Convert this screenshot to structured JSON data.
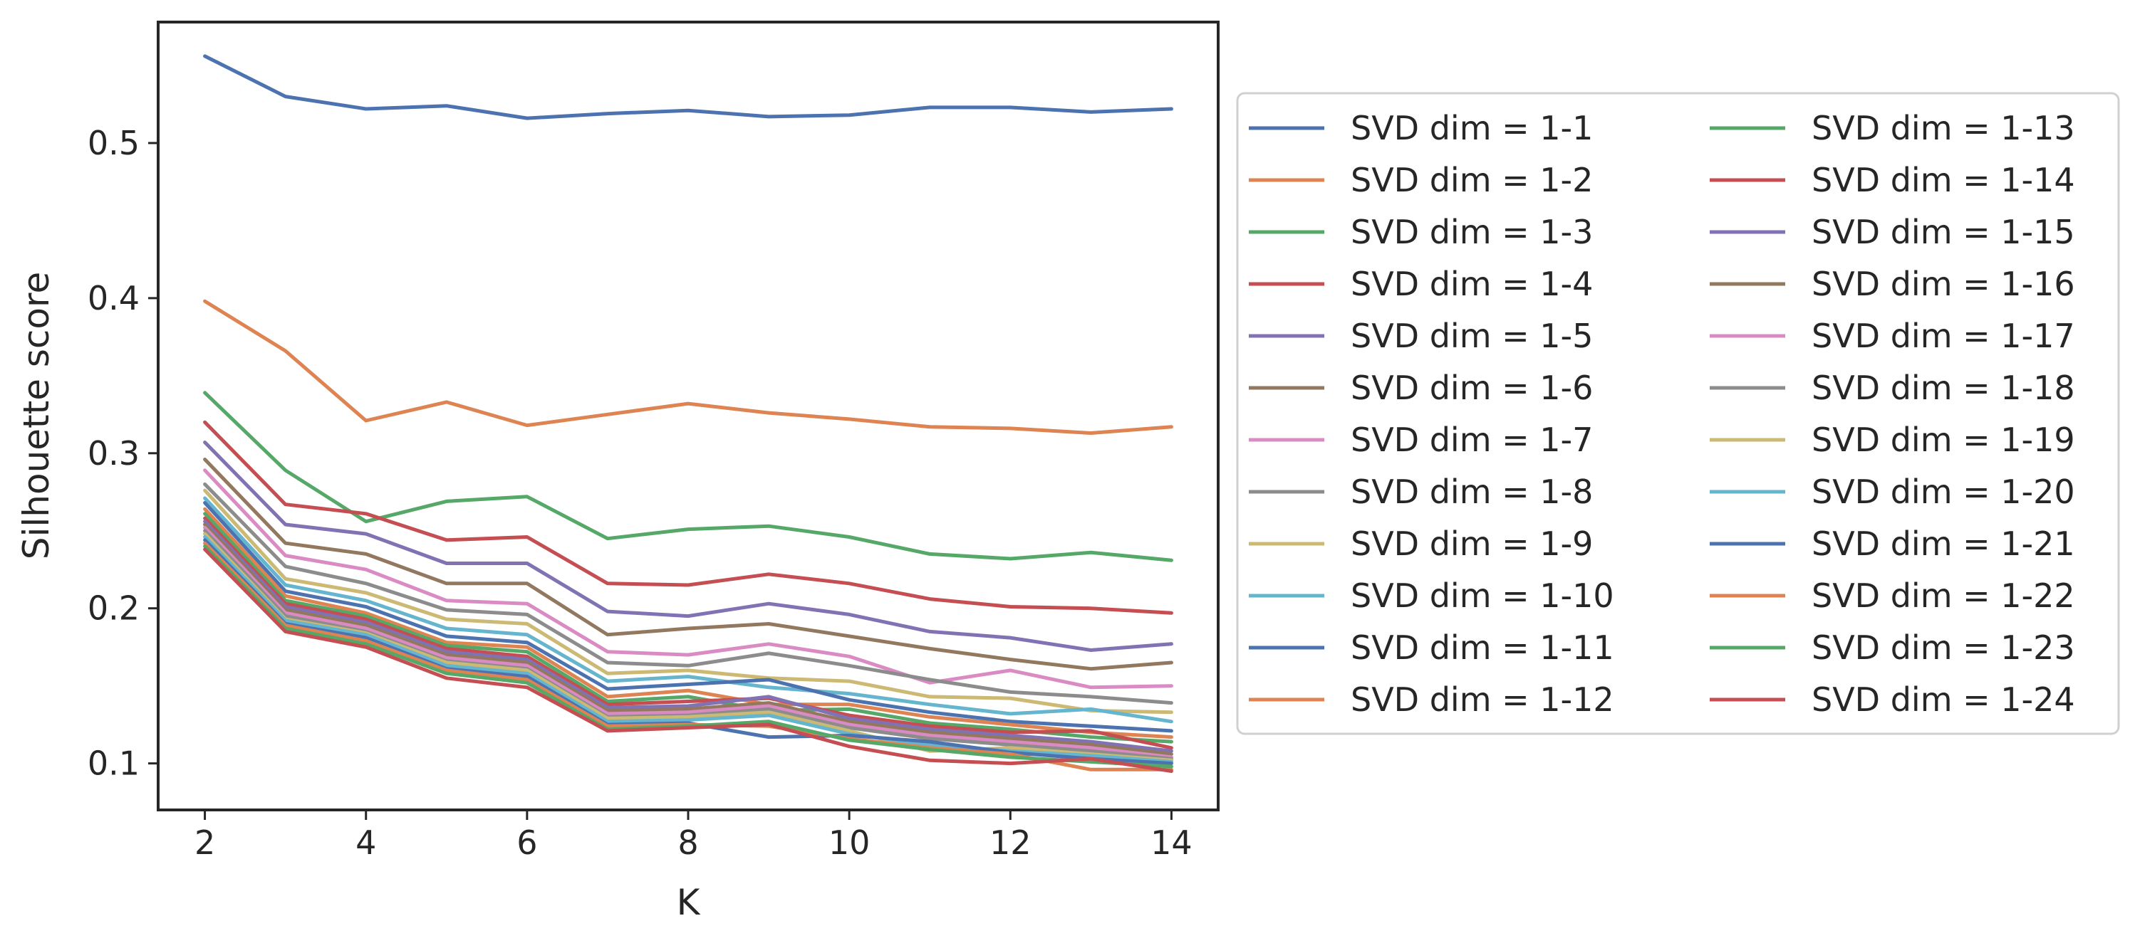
{
  "chart_data": {
    "type": "line",
    "xlabel": "K",
    "ylabel": "Silhouette score",
    "x": [
      2,
      3,
      4,
      5,
      6,
      7,
      8,
      9,
      10,
      11,
      12,
      13,
      14
    ],
    "xlim": [
      1.42,
      14.58
    ],
    "ylim": [
      0.07,
      0.578
    ],
    "xticks": [
      2,
      4,
      6,
      8,
      10,
      12,
      14
    ],
    "yticks": [
      0.1,
      0.2,
      0.3,
      0.4,
      0.5
    ],
    "grid": false,
    "legend": {
      "placement": "right, outside plot",
      "columns": 2
    },
    "series": [
      {
        "name": "SVD dim = 1-1",
        "color": "#4c72b0",
        "values": [
          0.556,
          0.53,
          0.522,
          0.524,
          0.516,
          0.519,
          0.521,
          0.517,
          0.518,
          0.523,
          0.523,
          0.52,
          0.522
        ]
      },
      {
        "name": "SVD dim = 1-2",
        "color": "#dd8452",
        "values": [
          0.398,
          0.366,
          0.321,
          0.333,
          0.318,
          0.325,
          0.332,
          0.326,
          0.322,
          0.317,
          0.316,
          0.313,
          0.317
        ]
      },
      {
        "name": "SVD dim = 1-3",
        "color": "#55a868",
        "values": [
          0.339,
          0.289,
          0.256,
          0.269,
          0.272,
          0.245,
          0.251,
          0.253,
          0.246,
          0.235,
          0.232,
          0.236,
          0.231
        ]
      },
      {
        "name": "SVD dim = 1-4",
        "color": "#c44e52",
        "values": [
          0.32,
          0.267,
          0.261,
          0.244,
          0.246,
          0.216,
          0.215,
          0.222,
          0.216,
          0.206,
          0.201,
          0.2,
          0.197
        ]
      },
      {
        "name": "SVD dim = 1-5",
        "color": "#8172b3",
        "values": [
          0.307,
          0.254,
          0.248,
          0.229,
          0.229,
          0.198,
          0.195,
          0.203,
          0.196,
          0.185,
          0.181,
          0.173,
          0.177
        ]
      },
      {
        "name": "SVD dim = 1-6",
        "color": "#937860",
        "values": [
          0.296,
          0.242,
          0.235,
          0.216,
          0.216,
          0.183,
          0.187,
          0.19,
          0.182,
          0.174,
          0.167,
          0.161,
          0.165
        ]
      },
      {
        "name": "SVD dim = 1-7",
        "color": "#da8bc3",
        "values": [
          0.289,
          0.234,
          0.225,
          0.205,
          0.203,
          0.172,
          0.17,
          0.177,
          0.169,
          0.152,
          0.16,
          0.149,
          0.15
        ]
      },
      {
        "name": "SVD dim = 1-8",
        "color": "#8c8c8c",
        "values": [
          0.28,
          0.227,
          0.216,
          0.199,
          0.196,
          0.165,
          0.163,
          0.171,
          0.163,
          0.154,
          0.146,
          0.143,
          0.139
        ]
      },
      {
        "name": "SVD dim = 1-9",
        "color": "#ccb974",
        "values": [
          0.276,
          0.219,
          0.21,
          0.193,
          0.19,
          0.158,
          0.16,
          0.155,
          0.153,
          0.143,
          0.142,
          0.134,
          0.133
        ]
      },
      {
        "name": "SVD dim = 1-10",
        "color": "#64b5cd",
        "values": [
          0.271,
          0.215,
          0.205,
          0.187,
          0.183,
          0.153,
          0.156,
          0.149,
          0.145,
          0.138,
          0.132,
          0.135,
          0.127
        ]
      },
      {
        "name": "SVD dim = 1-11",
        "color": "#4c72b0",
        "values": [
          0.268,
          0.211,
          0.201,
          0.182,
          0.178,
          0.148,
          0.151,
          0.154,
          0.141,
          0.133,
          0.127,
          0.124,
          0.121
        ]
      },
      {
        "name": "SVD dim = 1-12",
        "color": "#dd8452",
        "values": [
          0.264,
          0.208,
          0.197,
          0.178,
          0.175,
          0.143,
          0.147,
          0.138,
          0.138,
          0.13,
          0.125,
          0.12,
          0.117
        ]
      },
      {
        "name": "SVD dim = 1-13",
        "color": "#55a868",
        "values": [
          0.261,
          0.205,
          0.195,
          0.176,
          0.172,
          0.14,
          0.143,
          0.134,
          0.135,
          0.126,
          0.122,
          0.117,
          0.114
        ]
      },
      {
        "name": "SVD dim = 1-14",
        "color": "#c44e52",
        "values": [
          0.258,
          0.203,
          0.193,
          0.174,
          0.169,
          0.138,
          0.14,
          0.142,
          0.131,
          0.124,
          0.12,
          0.121,
          0.11
        ]
      },
      {
        "name": "SVD dim = 1-15",
        "color": "#8172b3",
        "values": [
          0.256,
          0.201,
          0.191,
          0.172,
          0.167,
          0.136,
          0.137,
          0.143,
          0.129,
          0.122,
          0.118,
          0.114,
          0.108
        ]
      },
      {
        "name": "SVD dim = 1-16",
        "color": "#937860",
        "values": [
          0.254,
          0.199,
          0.189,
          0.17,
          0.165,
          0.134,
          0.135,
          0.139,
          0.127,
          0.12,
          0.116,
          0.112,
          0.106
        ]
      },
      {
        "name": "SVD dim = 1-17",
        "color": "#da8bc3",
        "values": [
          0.252,
          0.197,
          0.187,
          0.168,
          0.163,
          0.132,
          0.133,
          0.137,
          0.125,
          0.118,
          0.114,
          0.11,
          0.104
        ]
      },
      {
        "name": "SVD dim = 1-18",
        "color": "#8c8c8c",
        "values": [
          0.25,
          0.195,
          0.185,
          0.166,
          0.161,
          0.13,
          0.131,
          0.135,
          0.123,
          0.116,
          0.112,
          0.108,
          0.103
        ]
      },
      {
        "name": "SVD dim = 1-19",
        "color": "#ccb974",
        "values": [
          0.248,
          0.193,
          0.184,
          0.165,
          0.16,
          0.129,
          0.13,
          0.133,
          0.121,
          0.108,
          0.11,
          0.106,
          0.102
        ]
      },
      {
        "name": "SVD dim = 1-20",
        "color": "#64b5cd",
        "values": [
          0.246,
          0.192,
          0.183,
          0.163,
          0.158,
          0.127,
          0.128,
          0.131,
          0.119,
          0.112,
          0.108,
          0.105,
          0.101
        ]
      },
      {
        "name": "SVD dim = 1-21",
        "color": "#4c72b0",
        "values": [
          0.244,
          0.19,
          0.181,
          0.161,
          0.156,
          0.125,
          0.126,
          0.117,
          0.118,
          0.114,
          0.107,
          0.103,
          0.1
        ]
      },
      {
        "name": "SVD dim = 1-22",
        "color": "#dd8452",
        "values": [
          0.242,
          0.189,
          0.179,
          0.16,
          0.154,
          0.124,
          0.125,
          0.124,
          0.116,
          0.11,
          0.106,
          0.096,
          0.096
        ]
      },
      {
        "name": "SVD dim = 1-23",
        "color": "#55a868",
        "values": [
          0.24,
          0.187,
          0.177,
          0.158,
          0.152,
          0.122,
          0.124,
          0.127,
          0.115,
          0.109,
          0.104,
          0.101,
          0.098
        ]
      },
      {
        "name": "SVD dim = 1-24",
        "color": "#c44e52",
        "values": [
          0.238,
          0.185,
          0.175,
          0.155,
          0.149,
          0.121,
          0.123,
          0.125,
          0.111,
          0.102,
          0.1,
          0.103,
          0.095
        ]
      }
    ]
  }
}
